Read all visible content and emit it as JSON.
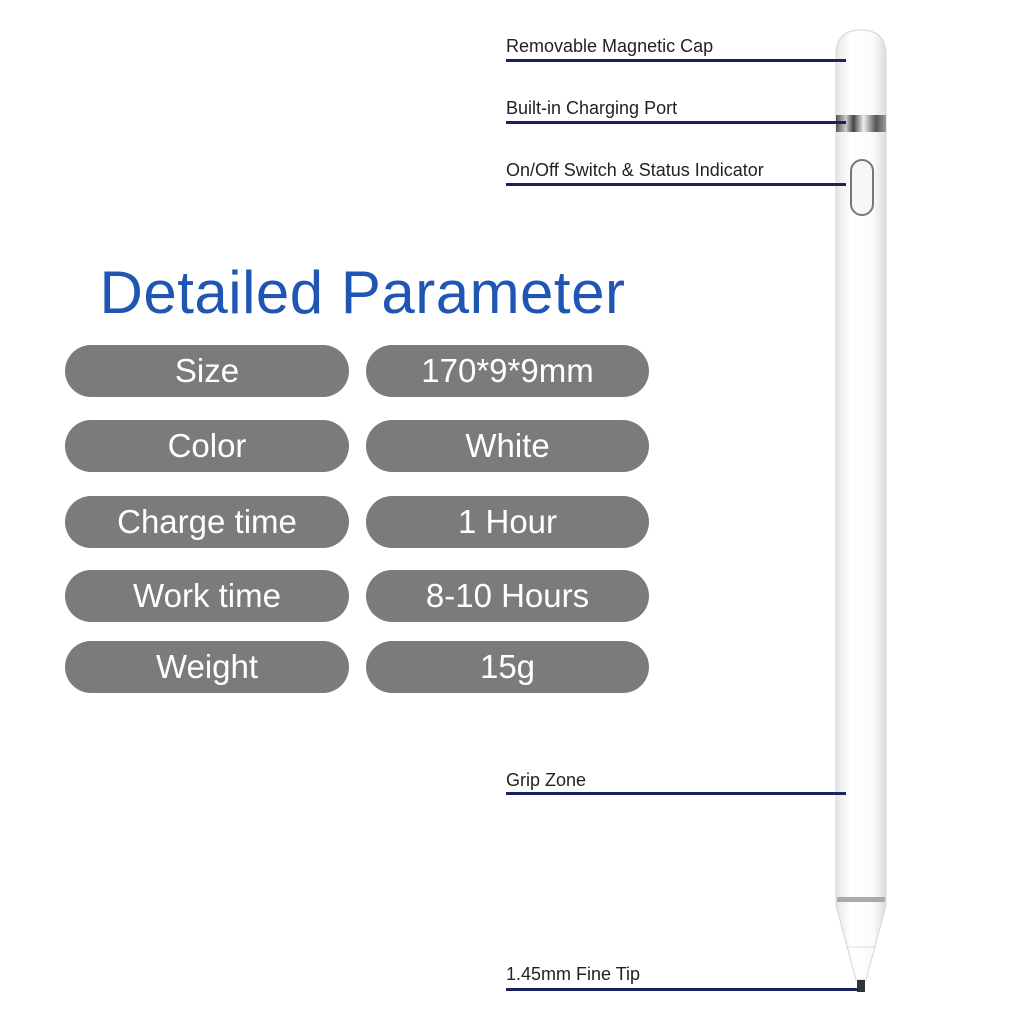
{
  "title": "Detailed Parameter",
  "params": [
    {
      "label": "Size",
      "value": "170*9*9mm"
    },
    {
      "label": "Color",
      "value": "White"
    },
    {
      "label": "Charge time",
      "value": "1 Hour"
    },
    {
      "label": "Work time",
      "value": "8-10 Hours"
    },
    {
      "label": "Weight",
      "value": "15g"
    }
  ],
  "callouts": [
    "Removable Magnetic Cap",
    "Built-in Charging Port",
    "On/Off Switch & Status Indicator",
    "Grip Zone",
    "1.45mm Fine Tip"
  ],
  "colors": {
    "title": "#1f56b4",
    "pill": "#7b7b7b",
    "callout_line": "#1a2360"
  }
}
